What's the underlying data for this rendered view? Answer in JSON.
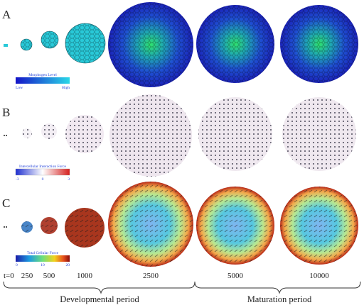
{
  "rows": [
    {
      "label": "A",
      "colorbar": {
        "title": "Morphogen Level",
        "ticks": [
          "Low",
          "High"
        ]
      }
    },
    {
      "label": "B",
      "colorbar": {
        "title": "Intercellular Interaction Force",
        "ticks": [
          "-3",
          "0",
          "3"
        ]
      }
    },
    {
      "label": "C",
      "colorbar": {
        "title": "Total Cellular Force",
        "ticks": [
          "0",
          "10",
          "20"
        ]
      }
    }
  ],
  "timepoints": [
    "t=0",
    "250",
    "500",
    "1000",
    "2500",
    "5000",
    "10000"
  ],
  "periods": [
    "Developmental period",
    "Maturation period"
  ],
  "colors": {
    "morph_low": "#1b2bd6",
    "morph_mid": "#2a7fd8",
    "morph_high": "#2ecf6a",
    "cyan_small": "#29c9d8",
    "force_neg": "#2e4fd8",
    "force_pos": "#d8332e",
    "total_low": "#1c2bbd",
    "total_high": "#b01010"
  }
}
